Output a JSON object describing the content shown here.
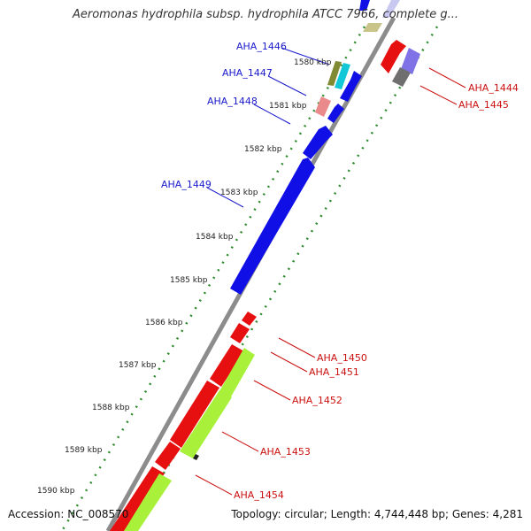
{
  "title": "Aeromonas hydrophila subsp. hydrophila ATCC 7966, complete g...",
  "footer": {
    "accession": "Accession: NC_008570",
    "summary": "Topology: circular; Length: 4,744,448 bp; Genes: 4,281"
  },
  "colors": {
    "backbone": "#8c8c8c",
    "tick": "#2e8b2e",
    "forward_gene": "#1010e6",
    "reverse_gene": "#e61010",
    "cds_green": "#a8f03a",
    "forward_label": "#1a1acc",
    "reverse_label": "#cc1111"
  },
  "ticks": [
    "1580 kbp",
    "1581 kbp",
    "1582 kbp",
    "1583 kbp",
    "1584 kbp",
    "1585 kbp",
    "1586 kbp",
    "1587 kbp",
    "1588 kbp",
    "1589 kbp",
    "1590 kbp"
  ],
  "genes_forward": [
    {
      "label": "AHA_1446"
    },
    {
      "label": "AHA_1447"
    },
    {
      "label": "AHA_1448"
    },
    {
      "label": "AHA_1449"
    }
  ],
  "genes_reverse": [
    {
      "label": "AHA_1444"
    },
    {
      "label": "AHA_1445"
    },
    {
      "label": "AHA_1450"
    },
    {
      "label": "AHA_1451"
    },
    {
      "label": "AHA_1452"
    },
    {
      "label": "AHA_1453"
    },
    {
      "label": "AHA_1454"
    }
  ]
}
